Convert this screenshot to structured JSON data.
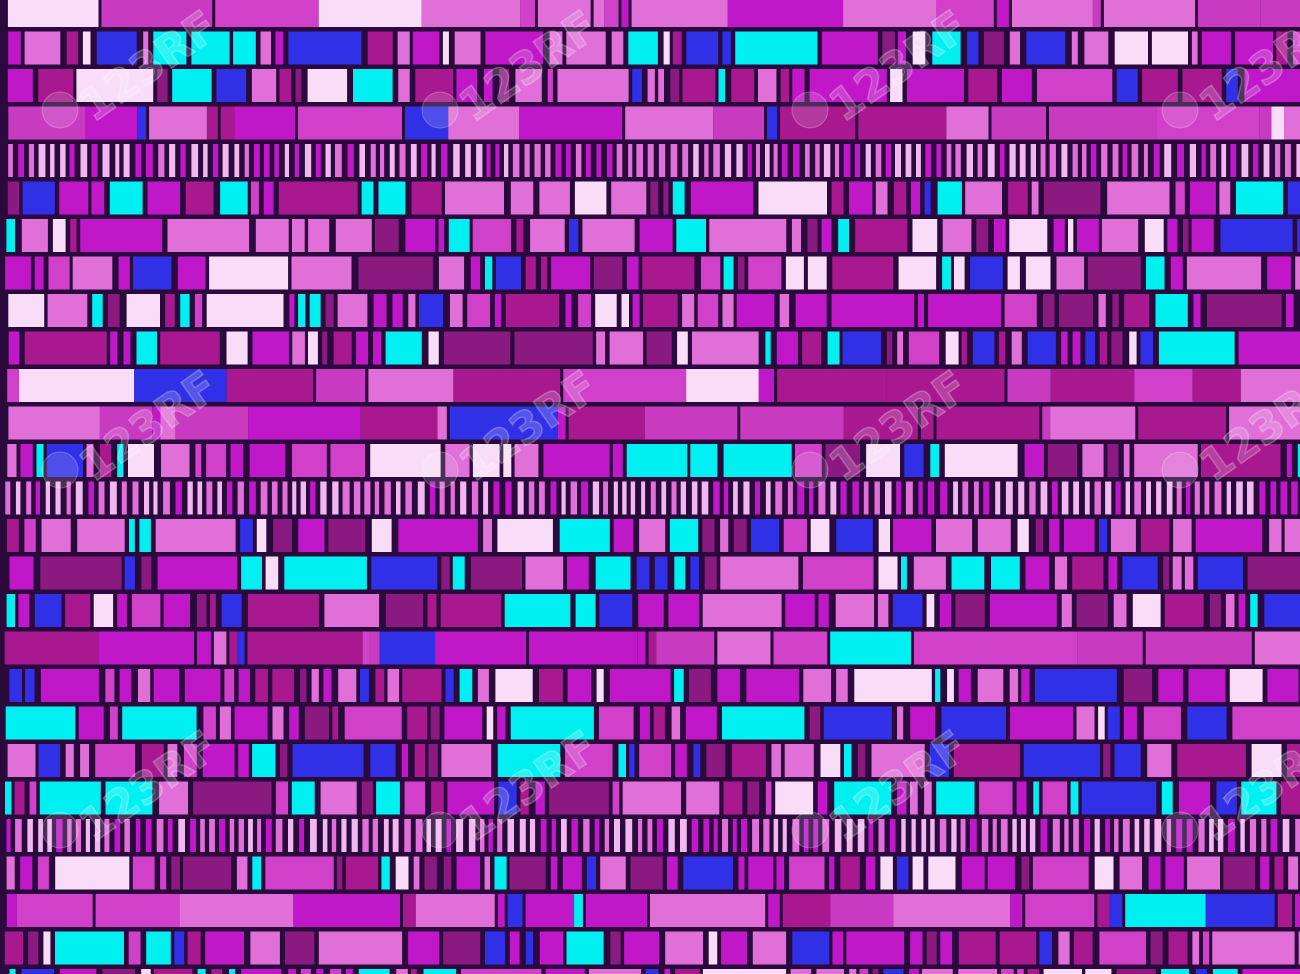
{
  "watermark": {
    "text": "123RF"
  }
}
